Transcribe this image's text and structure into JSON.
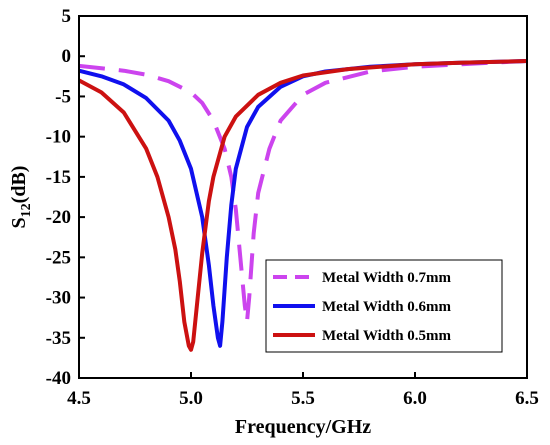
{
  "chart_data": {
    "type": "line",
    "xlabel": "Frequency/GHz",
    "ylabel_main": "S",
    "ylabel_sub": "12",
    "ylabel_unit": "(dB)",
    "xlim": [
      4.5,
      6.5
    ],
    "ylim": [
      -40,
      5
    ],
    "xticks": [
      4.5,
      5.0,
      5.5,
      6.0,
      6.5
    ],
    "xtick_labels": [
      "4.5",
      "5.0",
      "5.5",
      "6.0",
      "6.5"
    ],
    "yticks": [
      5,
      0,
      -5,
      -10,
      -15,
      -20,
      -25,
      -30,
      -35,
      -40
    ],
    "ytick_labels": [
      "5",
      "0",
      "-5",
      "-10",
      "-15",
      "-20",
      "-25",
      "-30",
      "-35",
      "-40"
    ],
    "grid": false,
    "legend_position": "bottom-right",
    "series": [
      {
        "name": "Metal Width 0.7mm",
        "color": "#cc44ee",
        "dash": "dashed",
        "x": [
          4.5,
          4.6,
          4.7,
          4.8,
          4.9,
          5.0,
          5.05,
          5.1,
          5.15,
          5.18,
          5.2,
          5.22,
          5.24,
          5.25,
          5.26,
          5.28,
          5.3,
          5.35,
          5.4,
          5.5,
          5.6,
          5.8,
          6.0,
          6.2,
          6.5
        ],
        "y": [
          -1.2,
          -1.5,
          -1.8,
          -2.3,
          -3.1,
          -4.5,
          -5.8,
          -8.0,
          -11.5,
          -15.0,
          -19.0,
          -25.0,
          -31.0,
          -33.0,
          -30.0,
          -22.0,
          -17.0,
          -11.5,
          -8.0,
          -4.8,
          -3.3,
          -1.9,
          -1.3,
          -1.0,
          -0.6
        ]
      },
      {
        "name": "Metal Width 0.6mm",
        "color": "#1010ee",
        "dash": "solid",
        "x": [
          4.5,
          4.6,
          4.7,
          4.8,
          4.9,
          4.95,
          5.0,
          5.05,
          5.08,
          5.1,
          5.12,
          5.13,
          5.14,
          5.16,
          5.18,
          5.2,
          5.25,
          5.3,
          5.4,
          5.5,
          5.6,
          5.8,
          6.0,
          6.2,
          6.5
        ],
        "y": [
          -1.8,
          -2.5,
          -3.5,
          -5.2,
          -8.0,
          -10.5,
          -14.0,
          -20.0,
          -26.0,
          -31.0,
          -35.0,
          -36.0,
          -33.0,
          -25.0,
          -18.5,
          -14.0,
          -8.8,
          -6.3,
          -3.8,
          -2.5,
          -1.9,
          -1.3,
          -1.0,
          -0.8,
          -0.6
        ]
      },
      {
        "name": "Metal Width 0.5mm",
        "color": "#cc1111",
        "dash": "solid",
        "x": [
          4.5,
          4.6,
          4.7,
          4.8,
          4.85,
          4.9,
          4.93,
          4.95,
          4.97,
          4.99,
          5.0,
          5.01,
          5.03,
          5.05,
          5.08,
          5.1,
          5.15,
          5.2,
          5.3,
          5.4,
          5.5,
          5.7,
          6.0,
          6.2,
          6.5
        ],
        "y": [
          -3.0,
          -4.5,
          -7.0,
          -11.5,
          -15.0,
          -20.0,
          -24.0,
          -28.0,
          -33.0,
          -36.0,
          -36.5,
          -35.5,
          -30.0,
          -24.5,
          -18.0,
          -15.0,
          -10.0,
          -7.5,
          -4.8,
          -3.3,
          -2.4,
          -1.6,
          -1.0,
          -0.8,
          -0.6
        ]
      }
    ]
  }
}
